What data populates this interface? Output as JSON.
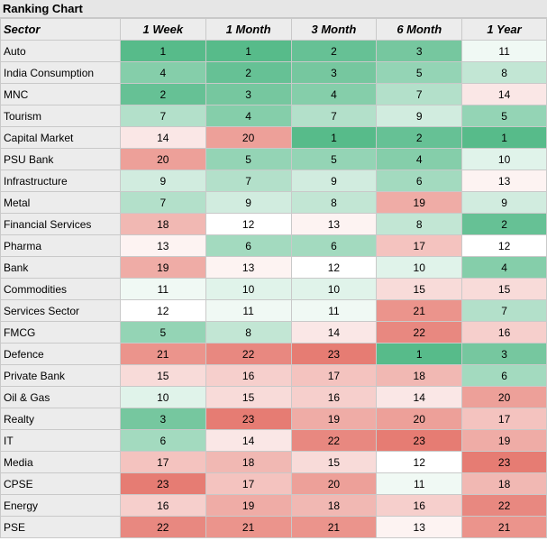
{
  "chart_data": {
    "type": "table",
    "title": "Ranking Chart",
    "header": [
      "Sector",
      "1 Week",
      "1 Month",
      "3 Month",
      "6 Month",
      "1 Year"
    ],
    "rows": [
      {
        "sector": "Auto",
        "values": [
          1,
          1,
          2,
          3,
          11
        ]
      },
      {
        "sector": "India Consumption",
        "values": [
          4,
          2,
          3,
          5,
          8
        ]
      },
      {
        "sector": "MNC",
        "values": [
          2,
          3,
          4,
          7,
          14
        ]
      },
      {
        "sector": "Tourism",
        "values": [
          7,
          4,
          7,
          9,
          5
        ]
      },
      {
        "sector": "Capital Market",
        "values": [
          14,
          20,
          1,
          2,
          1
        ]
      },
      {
        "sector": "PSU Bank",
        "values": [
          20,
          5,
          5,
          4,
          10
        ]
      },
      {
        "sector": "Infrastructure",
        "values": [
          9,
          7,
          9,
          6,
          13
        ]
      },
      {
        "sector": "Metal",
        "values": [
          7,
          9,
          8,
          19,
          9
        ]
      },
      {
        "sector": "Financial Services",
        "values": [
          18,
          12,
          13,
          8,
          2
        ]
      },
      {
        "sector": "Pharma",
        "values": [
          13,
          6,
          6,
          17,
          12
        ]
      },
      {
        "sector": "Bank",
        "values": [
          19,
          13,
          12,
          10,
          4
        ]
      },
      {
        "sector": "Commodities",
        "values": [
          11,
          10,
          10,
          15,
          15
        ]
      },
      {
        "sector": "Services Sector",
        "values": [
          12,
          11,
          11,
          21,
          7
        ]
      },
      {
        "sector": "FMCG",
        "values": [
          5,
          8,
          14,
          22,
          16
        ]
      },
      {
        "sector": "Defence",
        "values": [
          21,
          22,
          23,
          1,
          3
        ]
      },
      {
        "sector": "Private Bank",
        "values": [
          15,
          16,
          17,
          18,
          6
        ]
      },
      {
        "sector": "Oil & Gas",
        "values": [
          10,
          15,
          16,
          14,
          20
        ]
      },
      {
        "sector": "Realty",
        "values": [
          3,
          23,
          19,
          20,
          17
        ]
      },
      {
        "sector": "IT",
        "values": [
          6,
          14,
          22,
          23,
          19
        ]
      },
      {
        "sector": "Media",
        "values": [
          17,
          18,
          15,
          12,
          23
        ]
      },
      {
        "sector": "CPSE",
        "values": [
          23,
          17,
          20,
          11,
          18
        ]
      },
      {
        "sector": "Energy",
        "values": [
          16,
          19,
          18,
          16,
          22
        ]
      },
      {
        "sector": "PSE",
        "values": [
          22,
          21,
          21,
          13,
          21
        ]
      }
    ],
    "color_scale": {
      "min_rank": 1,
      "mid_rank": 12,
      "max_rank": 23,
      "best_color": "#57bb8a",
      "mid_color": "#ffffff",
      "worst_color": "#e67c73"
    }
  }
}
